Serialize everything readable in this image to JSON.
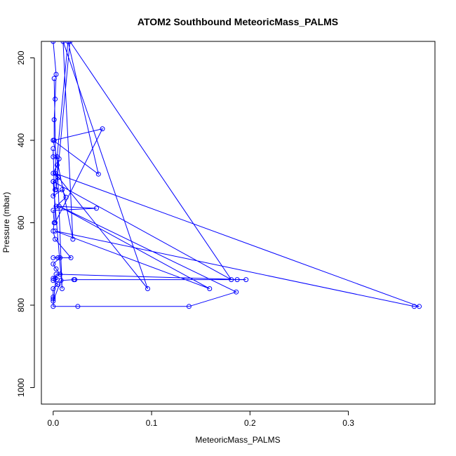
{
  "chart_data": {
    "type": "line",
    "title": "ATOM2 Southbound MeteoricMass_PALMS",
    "xlabel": "MeteoricMass_PALMS",
    "ylabel": "Pressure (mbar)",
    "xlim": [
      -0.012,
      0.388
    ],
    "ylim": [
      1040,
      160
    ],
    "y_inverted": true,
    "grid": false,
    "xticks": [
      0.0,
      0.1,
      0.2,
      0.3
    ],
    "xtick_labels": [
      "0.0",
      "0.1",
      "0.2",
      "0.3"
    ],
    "yticks": [
      200,
      400,
      600,
      800,
      1000
    ],
    "ytick_labels": [
      "200",
      "400",
      "600",
      "800",
      "1000"
    ],
    "series": [
      {
        "color": "#0000ff",
        "marker": "open-circle",
        "points": [
          [
            0.0,
            160
          ],
          [
            0.003,
            240
          ],
          [
            0.002,
            300
          ],
          [
            0.001,
            350
          ],
          [
            0.001,
            400
          ],
          [
            0.05,
            372
          ],
          [
            0.002,
            600
          ],
          [
            0.0,
            420
          ],
          [
            0.0,
            440
          ],
          [
            0.006,
            445
          ],
          [
            0.004,
            460
          ],
          [
            0.0,
            480
          ],
          [
            0.005,
            490
          ],
          [
            0.0,
            500
          ],
          [
            0.002,
            520
          ],
          [
            0.0,
            535
          ],
          [
            0.009,
            520
          ],
          [
            0.013,
            538
          ],
          [
            0.003,
            560
          ],
          [
            0.044,
            565
          ],
          [
            0.0,
            570
          ],
          [
            0.001,
            600
          ],
          [
            0.0,
            620
          ],
          [
            0.002,
            640
          ],
          [
            0.018,
            685
          ],
          [
            0.0,
            685
          ],
          [
            0.005,
            685
          ],
          [
            0.007,
            685
          ],
          [
            0.0,
            700
          ],
          [
            0.003,
            712
          ],
          [
            0.007,
            725
          ],
          [
            0.0,
            735
          ],
          [
            0.002,
            735
          ],
          [
            0.004,
            738
          ],
          [
            0.0,
            740
          ],
          [
            0.005,
            750
          ],
          [
            0.0,
            760
          ],
          [
            0.0,
            780
          ],
          [
            0.0,
            785
          ],
          [
            0.0,
            790
          ],
          [
            0.008,
            740
          ],
          [
            0.021,
            738
          ],
          [
            0.022,
            738
          ],
          [
            0.187,
            738
          ],
          [
            0.196,
            738
          ],
          [
            0.003,
            725
          ],
          [
            0.0,
            803
          ],
          [
            0.025,
            803
          ],
          [
            0.138,
            803
          ],
          [
            0.186,
            768
          ],
          [
            0.006,
            560
          ],
          [
            0.159,
            760
          ],
          [
            0.002,
            620
          ],
          [
            0.367,
            803
          ],
          [
            0.372,
            803
          ],
          [
            0.002,
            480
          ],
          [
            0.096,
            760
          ],
          [
            0.01,
            160
          ],
          [
            0.02,
            640
          ],
          [
            0.0,
            400
          ],
          [
            0.046,
            482
          ],
          [
            0.015,
            160
          ],
          [
            0.004,
            440
          ],
          [
            0.009,
            760
          ],
          [
            0.0,
            500
          ],
          [
            0.181,
            738
          ],
          [
            0.017,
            160
          ],
          [
            0.003,
            520
          ],
          [
            0.001,
            250
          ]
        ]
      }
    ]
  }
}
